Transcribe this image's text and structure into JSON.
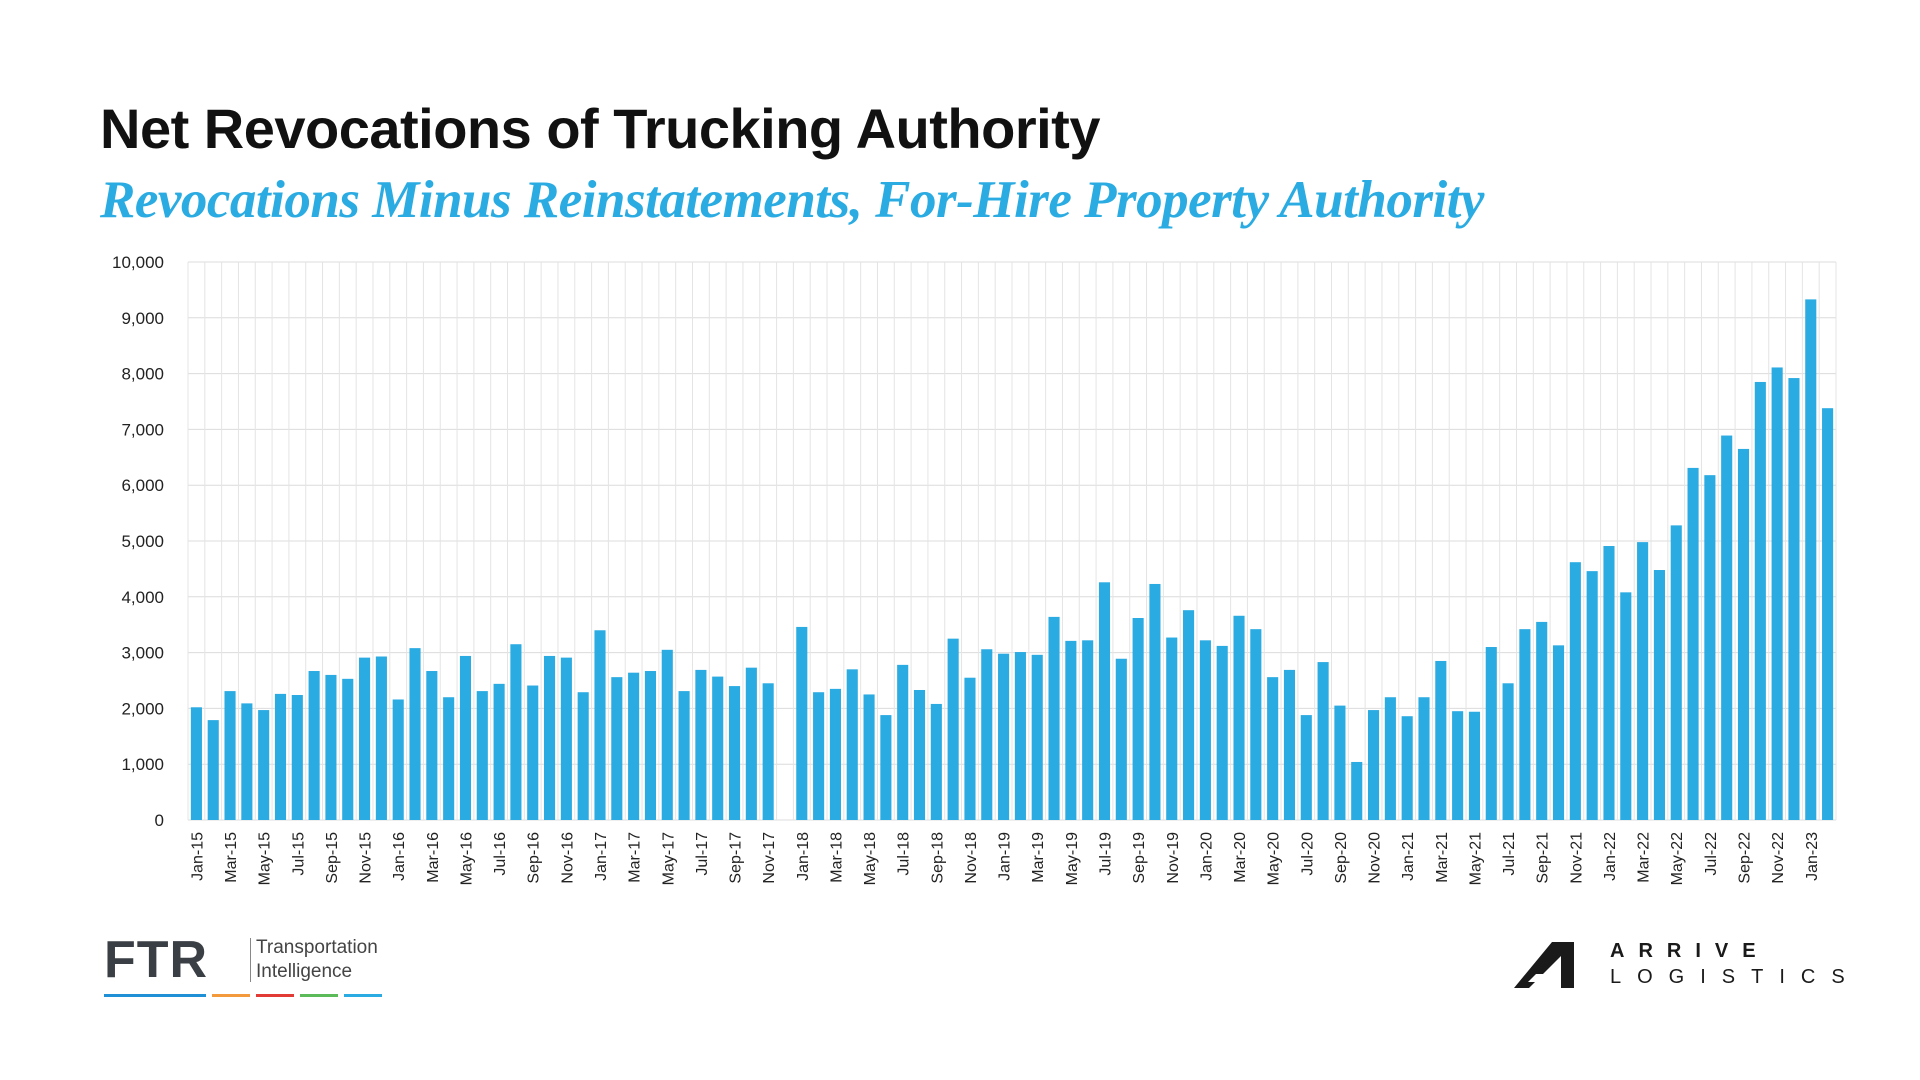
{
  "title": "Net Revocations of Trucking Authority",
  "subtitle": "Revocations Minus Reinstatements, For-Hire Property Authority",
  "chart_data": {
    "type": "bar",
    "bar_color": "#2aabe2",
    "grid": true,
    "ylim": [
      0,
      10000
    ],
    "yticks": [
      "0",
      "1,000",
      "2,000",
      "3,000",
      "4,000",
      "5,000",
      "6,000",
      "7,000",
      "8,000",
      "9,000",
      "10,000"
    ],
    "categories": [
      "Jan-15",
      "Feb-15",
      "Mar-15",
      "Apr-15",
      "May-15",
      "Jun-15",
      "Jul-15",
      "Aug-15",
      "Sep-15",
      "Oct-15",
      "Nov-15",
      "Dec-15",
      "Jan-16",
      "Feb-16",
      "Mar-16",
      "Apr-16",
      "May-16",
      "Jun-16",
      "Jul-16",
      "Aug-16",
      "Sep-16",
      "Oct-16",
      "Nov-16",
      "Dec-16",
      "Jan-17",
      "Feb-17",
      "Mar-17",
      "Apr-17",
      "May-17",
      "Jun-17",
      "Jul-17",
      "Aug-17",
      "Sep-17",
      "Oct-17",
      "Nov-17",
      "Dec-17",
      "Jan-18",
      "Feb-18",
      "Mar-18",
      "Apr-18",
      "May-18",
      "Jun-18",
      "Jul-18",
      "Aug-18",
      "Sep-18",
      "Oct-18",
      "Nov-18",
      "Dec-18",
      "Jan-19",
      "Feb-19",
      "Mar-19",
      "Apr-19",
      "May-19",
      "Jun-19",
      "Jul-19",
      "Aug-19",
      "Sep-19",
      "Oct-19",
      "Nov-19",
      "Dec-19",
      "Jan-20",
      "Feb-20",
      "Mar-20",
      "Apr-20",
      "May-20",
      "Jun-20",
      "Jul-20",
      "Aug-20",
      "Sep-20",
      "Oct-20",
      "Nov-20",
      "Dec-20",
      "Jan-21",
      "Feb-21",
      "Mar-21",
      "Apr-21",
      "May-21",
      "Jun-21",
      "Jul-21",
      "Aug-21",
      "Sep-21",
      "Oct-21",
      "Nov-21",
      "Dec-21",
      "Jan-22",
      "Feb-22",
      "Mar-22",
      "Apr-22",
      "May-22",
      "Jun-22",
      "Jul-22",
      "Aug-22",
      "Sep-22",
      "Oct-22",
      "Nov-22",
      "Dec-22",
      "Jan-23",
      "Feb-23"
    ],
    "x_tick_labels": [
      "Jan-15",
      "Mar-15",
      "May-15",
      "Jul-15",
      "Sep-15",
      "Nov-15",
      "Jan-16",
      "Mar-16",
      "May-16",
      "Jul-16",
      "Sep-16",
      "Nov-16",
      "Jan-17",
      "Mar-17",
      "May-17",
      "Jul-17",
      "Sep-17",
      "Nov-17",
      "Jan-18",
      "Mar-18",
      "May-18",
      "Jul-18",
      "Sep-18",
      "Nov-18",
      "Jan-19",
      "Mar-19",
      "May-19",
      "Jul-19",
      "Sep-19",
      "Nov-19",
      "Jan-20",
      "Mar-20",
      "May-20",
      "Jul-20",
      "Sep-20",
      "Nov-20",
      "Jan-21",
      "Mar-21",
      "May-21",
      "Jul-21",
      "Sep-21",
      "Nov-21",
      "Jan-22",
      "Mar-22",
      "May-22",
      "Jul-22",
      "Sep-22",
      "Nov-22",
      "Jan-23"
    ],
    "values": [
      2020,
      1790,
      2310,
      2090,
      1970,
      2260,
      2240,
      2670,
      2600,
      2530,
      2910,
      2930,
      2160,
      3080,
      2670,
      2200,
      2940,
      2310,
      2440,
      3150,
      2410,
      2940,
      2910,
      2290,
      3400,
      2560,
      2640,
      2670,
      3050,
      2310,
      2690,
      2570,
      2400,
      2730,
      2450,
      null,
      3460,
      2290,
      2350,
      2700,
      2250,
      1880,
      2780,
      2330,
      2080,
      3250,
      2550,
      3060,
      2980,
      3010,
      2960,
      3640,
      3210,
      3220,
      4260,
      2890,
      3620,
      4230,
      3270,
      3760,
      3220,
      3120,
      3660,
      3420,
      2560,
      2690,
      1880,
      2830,
      2050,
      1040,
      1970,
      2200,
      1860,
      2200,
      2850,
      1950,
      1940,
      3100,
      2450,
      3420,
      3550,
      3130,
      4620,
      4460,
      4910,
      4080,
      4980,
      4480,
      5280,
      6310,
      6180,
      6890,
      6650,
      7850,
      8110,
      7920,
      9330,
      7380
    ]
  },
  "logos": {
    "ftr": {
      "wordmark": "FTR",
      "tagline_1": "Transportation",
      "tagline_2": "Intelligence",
      "stripe_colors": [
        "#1f8fd6",
        "#f39a3c",
        "#e23b35",
        "#5cba59",
        "#2aabe2"
      ]
    },
    "arrive": {
      "line_1": "ARRIVE",
      "line_2": "LOGISTICS"
    }
  }
}
